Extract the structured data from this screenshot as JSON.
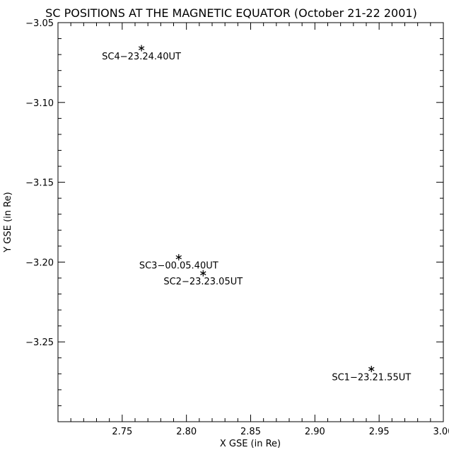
{
  "chart_data": {
    "type": "scatter",
    "title": "SC POSITIONS AT THE MAGNETIC EQUATOR (October 21-22 2001)",
    "xlabel": "X GSE (in Re)",
    "ylabel": "Y GSE (in Re)",
    "xlim": [
      2.7,
      3.0
    ],
    "ylim": [
      -3.3,
      -3.05
    ],
    "x_ticks": [
      "2.75",
      "2.80",
      "2.85",
      "2.90",
      "2.95",
      "3.00"
    ],
    "y_ticks": [
      "-3.05",
      "-3.10",
      "-3.15",
      "-3.20",
      "-3.25"
    ],
    "marker": "asterisk",
    "grid": false,
    "points": [
      {
        "x": 2.765,
        "y": -3.066,
        "label": "SC4-23.24.40UT"
      },
      {
        "x": 2.794,
        "y": -3.197,
        "label": "SC3-00.05.40UT"
      },
      {
        "x": 2.813,
        "y": -3.207,
        "label": "SC2-23.23.05UT"
      },
      {
        "x": 2.944,
        "y": -3.267,
        "label": "SC1-23.21.55UT"
      }
    ]
  }
}
